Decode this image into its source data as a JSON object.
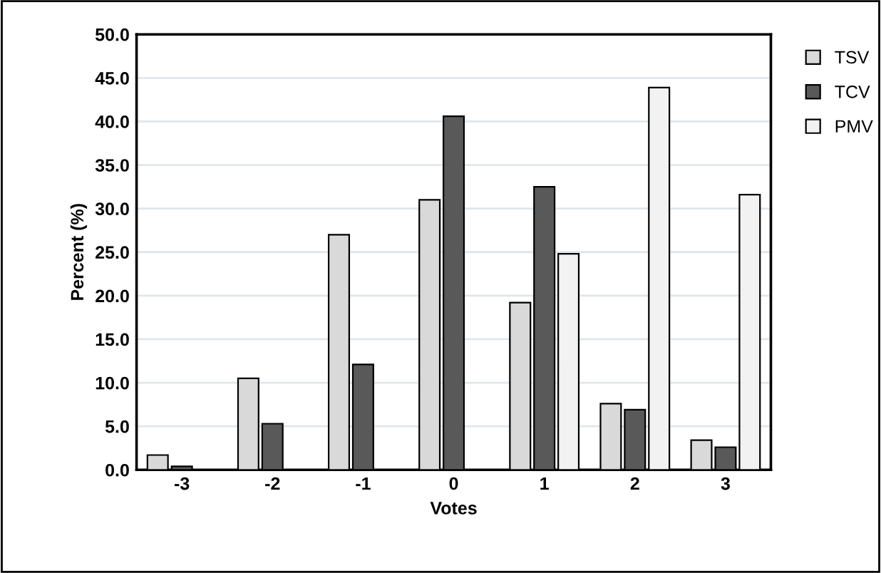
{
  "chart_data": {
    "type": "bar",
    "xlabel": "Votes",
    "ylabel": "Percent (%)",
    "categories": [
      "-3",
      "-2",
      "-1",
      "0",
      "1",
      "2",
      "3"
    ],
    "series": [
      {
        "name": "TSV",
        "color": "#d9d9d9",
        "values": [
          1.7,
          10.5,
          27.0,
          31.0,
          19.2,
          7.6,
          3.4
        ]
      },
      {
        "name": "TCV",
        "color": "#595959",
        "values": [
          0.4,
          5.3,
          12.1,
          40.6,
          32.5,
          6.9,
          2.6
        ]
      },
      {
        "name": "PMV",
        "color": "#f2f2f2",
        "values": [
          null,
          null,
          null,
          null,
          24.8,
          43.9,
          31.6
        ]
      }
    ],
    "ylim": [
      0,
      50
    ],
    "yticks": [
      {
        "value": 0,
        "label": "0.0"
      },
      {
        "value": 5,
        "label": "5.0"
      },
      {
        "value": 10,
        "label": "10.0"
      },
      {
        "value": 15,
        "label": "15.0"
      },
      {
        "value": 20,
        "label": "20.0"
      },
      {
        "value": 25,
        "label": "25.0"
      },
      {
        "value": 30,
        "label": "30.0"
      },
      {
        "value": 35,
        "label": "35.0"
      },
      {
        "value": 40,
        "label": "40.0"
      },
      {
        "value": 45,
        "label": "45.0"
      },
      {
        "value": 50,
        "label": "50.0"
      }
    ],
    "grid": "y",
    "legend": "right"
  }
}
